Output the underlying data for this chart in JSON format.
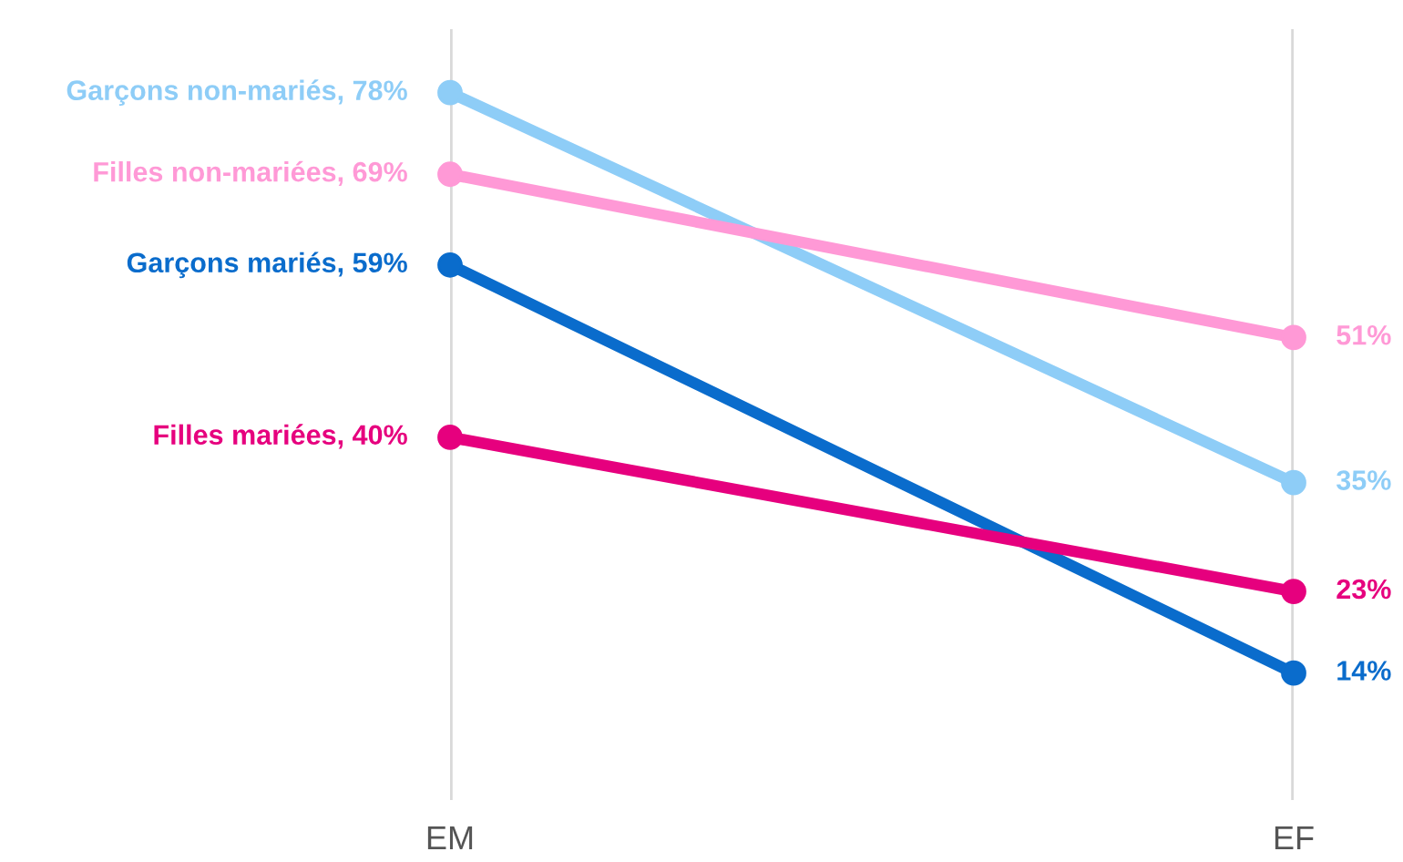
{
  "chart_data": {
    "type": "line",
    "categories": [
      "EM",
      "EF"
    ],
    "series": [
      {
        "name": "Garçons non-mariés,",
        "color": "#8ecdf7",
        "values": [
          78,
          35
        ],
        "value_labels": [
          "78%",
          "35%"
        ]
      },
      {
        "name": "Filles non-mariées,",
        "color": "#ff99d6",
        "values": [
          69,
          51
        ],
        "value_labels": [
          "69%",
          "51%"
        ]
      },
      {
        "name": "Garçons mariés,",
        "color": "#0a6ccc",
        "values": [
          59,
          14
        ],
        "value_labels": [
          "59%",
          "14%"
        ]
      },
      {
        "name": "Filles mariées,",
        "color": "#e6007e",
        "values": [
          40,
          23
        ],
        "value_labels": [
          "40%",
          "23%"
        ]
      }
    ],
    "ylim": [
      0,
      85
    ],
    "tick_labels": "x",
    "grid": "x",
    "marker": "circle",
    "line_style": "solid",
    "legend": false
  }
}
